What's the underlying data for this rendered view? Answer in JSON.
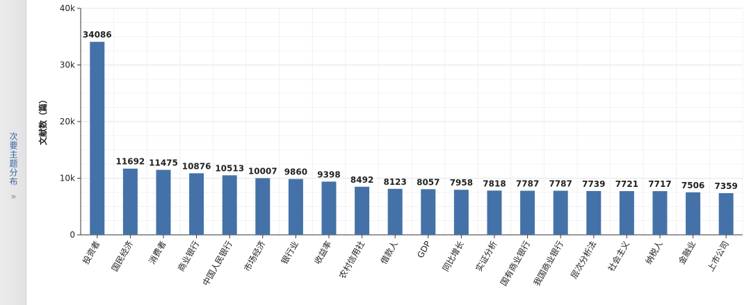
{
  "side_tab": {
    "label": "次要主题分布",
    "icon": "double-chevron-right-icon",
    "icon_glyph": "»"
  },
  "chart_data": {
    "type": "bar",
    "title": "",
    "xlabel": "",
    "ylabel": "文献数（篇）",
    "ylim": [
      0,
      40000
    ],
    "yticks": [
      0,
      10000,
      20000,
      30000,
      40000
    ],
    "ytick_labels": [
      "0",
      "10k",
      "20k",
      "30k",
      "40k"
    ],
    "grid": true,
    "bar_color": "#4472a8",
    "categories": [
      "投资者",
      "国民经济",
      "消费者",
      "商业银行",
      "中国人民银行",
      "市场经济",
      "银行业",
      "收益率",
      "农村信用社",
      "借款人",
      "GDP",
      "同比增长",
      "实证分析",
      "国有商业银行",
      "我国商业银行",
      "层次分析法",
      "社会主义",
      "纳税人",
      "金融业",
      "上市公司"
    ],
    "values": [
      34086,
      11692,
      11475,
      10876,
      10513,
      10007,
      9860,
      9398,
      8492,
      8123,
      8057,
      7958,
      7818,
      7787,
      7787,
      7739,
      7721,
      7717,
      7506,
      7359
    ]
  }
}
